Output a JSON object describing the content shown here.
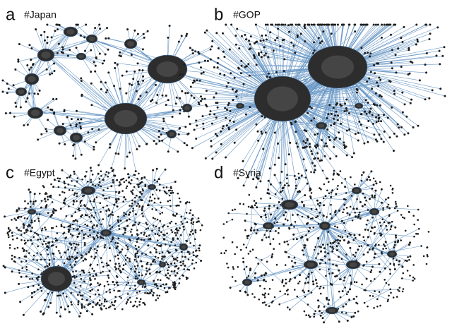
{
  "panels": [
    {
      "letter": "a",
      "label": "#Japan"
    },
    {
      "letter": "b",
      "label": "#GOP"
    },
    {
      "letter": "c",
      "label": "#Egypt"
    },
    {
      "letter": "d",
      "label": "#Syria"
    }
  ]
}
